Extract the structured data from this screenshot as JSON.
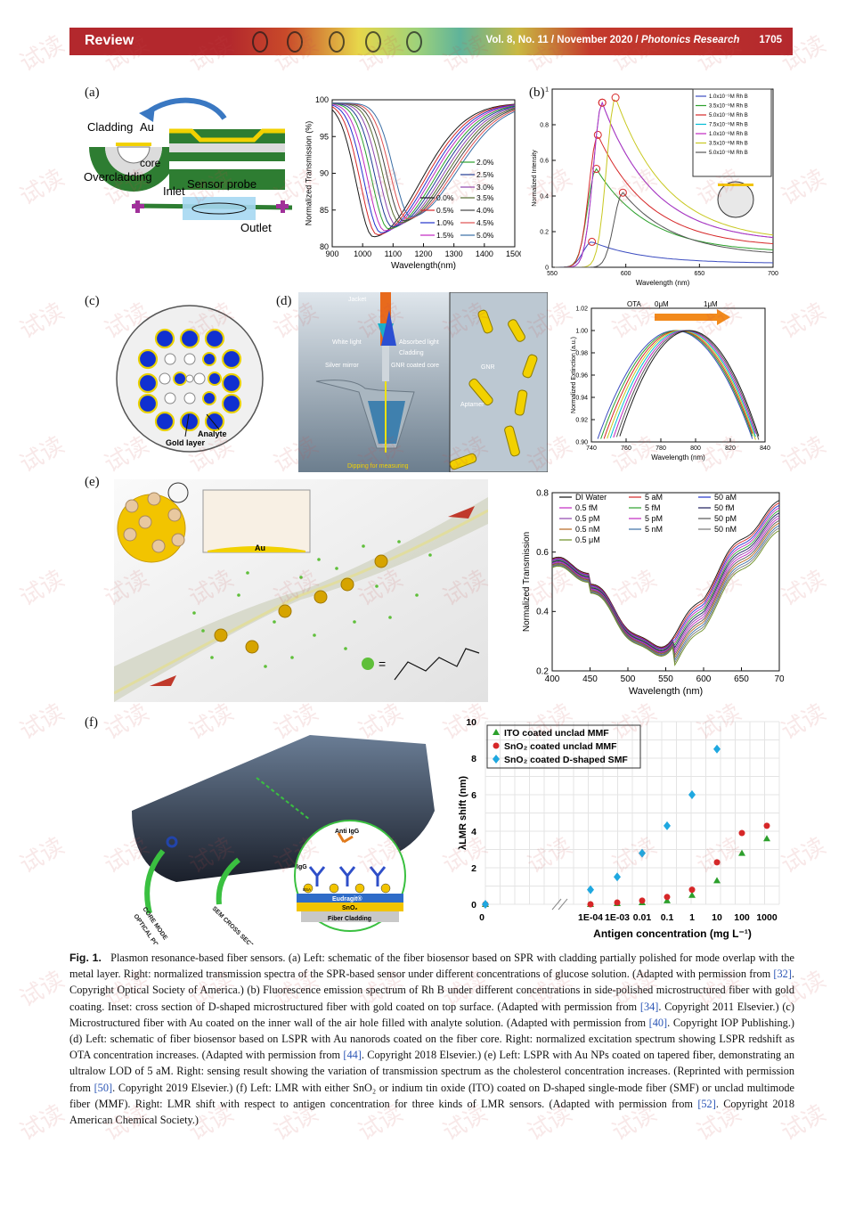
{
  "header": {
    "section": "Review",
    "journal_info": "Vol. 8, No. 11 / November 2020 / ",
    "journal_name": "Photonics Research",
    "page": "1705"
  },
  "panels": {
    "a": {
      "label": "(a)",
      "cladding": "Cladding",
      "au": "Au",
      "core": "core",
      "overcladding": "Overcladding",
      "sensor_probe": "Sensor probe",
      "inlet": "Inlet",
      "outlet": "Outlet"
    },
    "b": {
      "label": "(b)"
    },
    "c": {
      "label": "(c)",
      "analyte": "Analyte",
      "gold_layer": "Gold layer"
    },
    "d": {
      "label": "(d)",
      "jacket": "Jacket",
      "white_light": "White light",
      "absorbed_light": "Absorbed light",
      "cladding": "Cladding",
      "silver_mirror": "Silver mirror",
      "gnr_core": "GNR coated core",
      "dipping": "Dipping for measuring",
      "gnr": "GNR",
      "aptamer": "Aptamer"
    },
    "e": {
      "label": "(e)",
      "au": "Au",
      "eq": "="
    },
    "f": {
      "label": "(f)",
      "anti_igg": "Anti IgG",
      "igg": "IgG",
      "bsa": "BSA",
      "eudragit": "Eudragit®",
      "sno2": "SnO₂",
      "fiber_cladding": "Fiber Cladding",
      "core_mode": "CORE MODE",
      "optical_power": "OPTICAL POWER",
      "sem_cross": "SEM CROSS SECTION"
    }
  },
  "chart_data": [
    {
      "id": "a-right",
      "type": "line",
      "ylabel": "Normalized Transmission (%)",
      "xlabel": "Wavelength(nm)",
      "xlim": [
        900,
        1500
      ],
      "ylim": [
        78,
        100
      ],
      "xticks": [
        "900",
        "1000",
        "1100",
        "1200",
        "1300",
        "1400",
        "1500"
      ],
      "yticks": [
        "80",
        "85",
        "90",
        "95",
        "100"
      ],
      "series": [
        {
          "name": "0.0%",
          "color": "#1a1a1a",
          "min_x": 1035
        },
        {
          "name": "0.5%",
          "color": "#d62728",
          "min_x": 1048
        },
        {
          "name": "1.0%",
          "color": "#2233cc",
          "min_x": 1060
        },
        {
          "name": "1.5%",
          "color": "#c027c0",
          "min_x": 1072
        },
        {
          "name": "2.0%",
          "color": "#2ca02c",
          "min_x": 1085
        },
        {
          "name": "2.5%",
          "color": "#1f3a93",
          "min_x": 1097
        },
        {
          "name": "3.0%",
          "color": "#8e44ad",
          "min_x": 1110
        },
        {
          "name": "3.5%",
          "color": "#556b2f",
          "min_x": 1122
        },
        {
          "name": "4.0%",
          "color": "#444444",
          "min_x": 1134
        },
        {
          "name": "4.5%",
          "color": "#e05050",
          "min_x": 1146
        },
        {
          "name": "5.0%",
          "color": "#3a6ea5",
          "min_x": 1158
        }
      ]
    },
    {
      "id": "b",
      "type": "line",
      "ylabel": "Normalized Intensity",
      "xlabel": "Wavelength (nm)",
      "xlim": [
        550,
        700
      ],
      "ylim": [
        0,
        1.05
      ],
      "xticks": [
        "550",
        "600",
        "650",
        "700"
      ],
      "yticks": [
        "0",
        "0.2",
        "0.4",
        "0.6",
        "0.8",
        "1"
      ],
      "series": [
        {
          "name": "1.0x10⁻⁹M Rh B",
          "color": "#3b4cc0",
          "peak_x": 577,
          "peak_y": 0.15
        },
        {
          "name": "3.5x10⁻⁹M Rh B",
          "color": "#2ca02c",
          "peak_x": 580,
          "peak_y": 0.58
        },
        {
          "name": "5.0x10⁻⁹M Rh B",
          "color": "#d62728",
          "peak_x": 581,
          "peak_y": 0.78
        },
        {
          "name": "7.5x10⁻⁹M Rh B",
          "color": "#00bcd4",
          "peak_x": 584,
          "peak_y": 0.97
        },
        {
          "name": "1.0x10⁻⁸M Rh B",
          "color": "#c027c0",
          "peak_x": 584,
          "peak_y": 0.97
        },
        {
          "name": "3.5x10⁻⁸M Rh B",
          "color": "#c8c820",
          "peak_x": 593,
          "peak_y": 1.0
        },
        {
          "name": "5.0x10⁻⁸M Rh B",
          "color": "#555555",
          "peak_x": 598,
          "peak_y": 0.44
        }
      ]
    },
    {
      "id": "d-right",
      "type": "line",
      "ylabel": "Normalized Extinction (a.u.)",
      "xlabel": "Wavelength (nm)",
      "xlim": [
        740,
        850
      ],
      "ylim": [
        0.9,
        1.02
      ],
      "xticks": [
        "740",
        "760",
        "780",
        "800",
        "820",
        "840"
      ],
      "yticks": [
        "0.90",
        "0.92",
        "0.94",
        "0.96",
        "0.98",
        "1.00",
        "1.02"
      ],
      "annotation": {
        "ota": "OTA",
        "from": "0μM",
        "to": "1μM"
      },
      "series_count": 8,
      "peak_range": [
        793,
        802
      ]
    },
    {
      "id": "e-right",
      "type": "line",
      "ylabel": "Normalized Transmission",
      "xlabel": "Wavelength (nm)",
      "xlim": [
        400,
        700
      ],
      "ylim": [
        0.1,
        0.95
      ],
      "xticks": [
        "400",
        "450",
        "500",
        "550",
        "600",
        "650",
        "70"
      ],
      "yticks": [
        "0.2",
        "0.4",
        "0.6",
        "0.8"
      ],
      "legend": [
        {
          "name": "DI Water",
          "color": "#111111"
        },
        {
          "name": "5 aM",
          "color": "#d62728"
        },
        {
          "name": "50 aM",
          "color": "#2233cc"
        },
        {
          "name": "0.5 fM",
          "color": "#c027c0"
        },
        {
          "name": "5 fM",
          "color": "#2ca02c"
        },
        {
          "name": "50 fM",
          "color": "#1a1a5a"
        },
        {
          "name": "0.5 pM",
          "color": "#8e44ad"
        },
        {
          "name": "5 pM",
          "color": "#c027c0"
        },
        {
          "name": "50 pM",
          "color": "#555555"
        },
        {
          "name": "0.5 nM",
          "color": "#b5651d"
        },
        {
          "name": "5 nM",
          "color": "#3a6ea5"
        },
        {
          "name": "50 nM",
          "color": "#777777"
        },
        {
          "name": "0.5 μM",
          "color": "#6b8e23"
        }
      ]
    },
    {
      "id": "f-right",
      "type": "scatter",
      "ylabel": "λLMR shift (nm)",
      "xlabel": "Antigen concentration (mg L⁻¹)",
      "ylim": [
        0,
        10
      ],
      "xticks": [
        "0",
        "1E-04",
        "1E-03",
        "0.01",
        "0.1",
        "1",
        "10",
        "100",
        "1000"
      ],
      "yticks": [
        "0",
        "2",
        "4",
        "6",
        "8",
        "10"
      ],
      "series": [
        {
          "name": "ITO coated unclad MMF",
          "marker": "triangle",
          "color": "#2ca02c",
          "x": [
            "0",
            "1E-04",
            "1E-03",
            "0.01",
            "0.1",
            "1",
            "10",
            "100",
            "1000"
          ],
          "y": [
            0,
            0,
            0.05,
            0.1,
            0.2,
            0.5,
            1.3,
            2.8,
            3.6
          ]
        },
        {
          "name": "SnO₂ coated unclad MMF",
          "marker": "circle",
          "color": "#d62728",
          "x": [
            "0",
            "1E-04",
            "1E-03",
            "0.01",
            "0.1",
            "1",
            "10",
            "100",
            "1000"
          ],
          "y": [
            0,
            0,
            0.1,
            0.2,
            0.4,
            0.8,
            2.3,
            3.9,
            4.3
          ]
        },
        {
          "name": "SnO₂ coated D-shaped SMF",
          "marker": "diamond",
          "color": "#1fa8e0",
          "x": [
            "0",
            "1E-04",
            "1E-03",
            "0.01",
            "0.1",
            "1",
            "10"
          ],
          "y": [
            0,
            0.8,
            1.5,
            2.8,
            4.3,
            6.0,
            8.5
          ]
        }
      ]
    }
  ],
  "caption": {
    "fig": "Fig. 1.",
    "p1": "Plasmon resonance-based fiber sensors. (a) Left: schematic of the fiber biosensor based on SPR with cladding partially polished for mode overlap with the metal layer. Right: normalized transmission spectra of the SPR-based sensor under different concentrations of glucose solution. (Adapted with permission from ",
    "r1": "[32]",
    "p2": ". Copyright Optical Society of America.) (b) Fluorescence emission spectrum of Rh B under different concentrations in side-polished microstructured fiber with gold coating. Inset: cross section of D-shaped microstructured fiber with gold coated on top surface. (Adapted with permission from ",
    "r2": "[34]",
    "p3": ". Copyright 2011 Elsevier.) (c) Microstructured fiber with Au coated on the inner wall of the air hole filled with analyte solution. (Adapted with permission from ",
    "r3": "[40]",
    "p4": ". Copyright IOP Publishing.) (d) Left: schematic of fiber biosensor based on LSPR with Au nanorods coated on the fiber core. Right: normalized excitation spectrum showing LSPR redshift as OTA concentration increases. (Adapted with permission from ",
    "r4": "[44]",
    "p5": ". Copyright 2018 Elsevier.) (e) Left: LSPR with Au NPs coated on tapered fiber, demonstrating an ultralow LOD of 5 aM. Right: sensing result showing the variation of transmission spectrum as the cholesterol concentration increases. (Reprinted with permission from ",
    "r5": "[50]",
    "p6": ". Copyright 2019 Elsevier.) (f) Left: LMR with either SnO₂ or indium tin oxide (ITO) coated on D-shaped single-mode fiber (SMF) or unclad multimode fiber (MMF). Right: LMR shift with respect to antigen concentration for three kinds of LMR sensors. (Adapted with permission from ",
    "r6": "[52]",
    "p7": ". Copyright 2018 American Chemical Society.)"
  },
  "watermark": "试读"
}
